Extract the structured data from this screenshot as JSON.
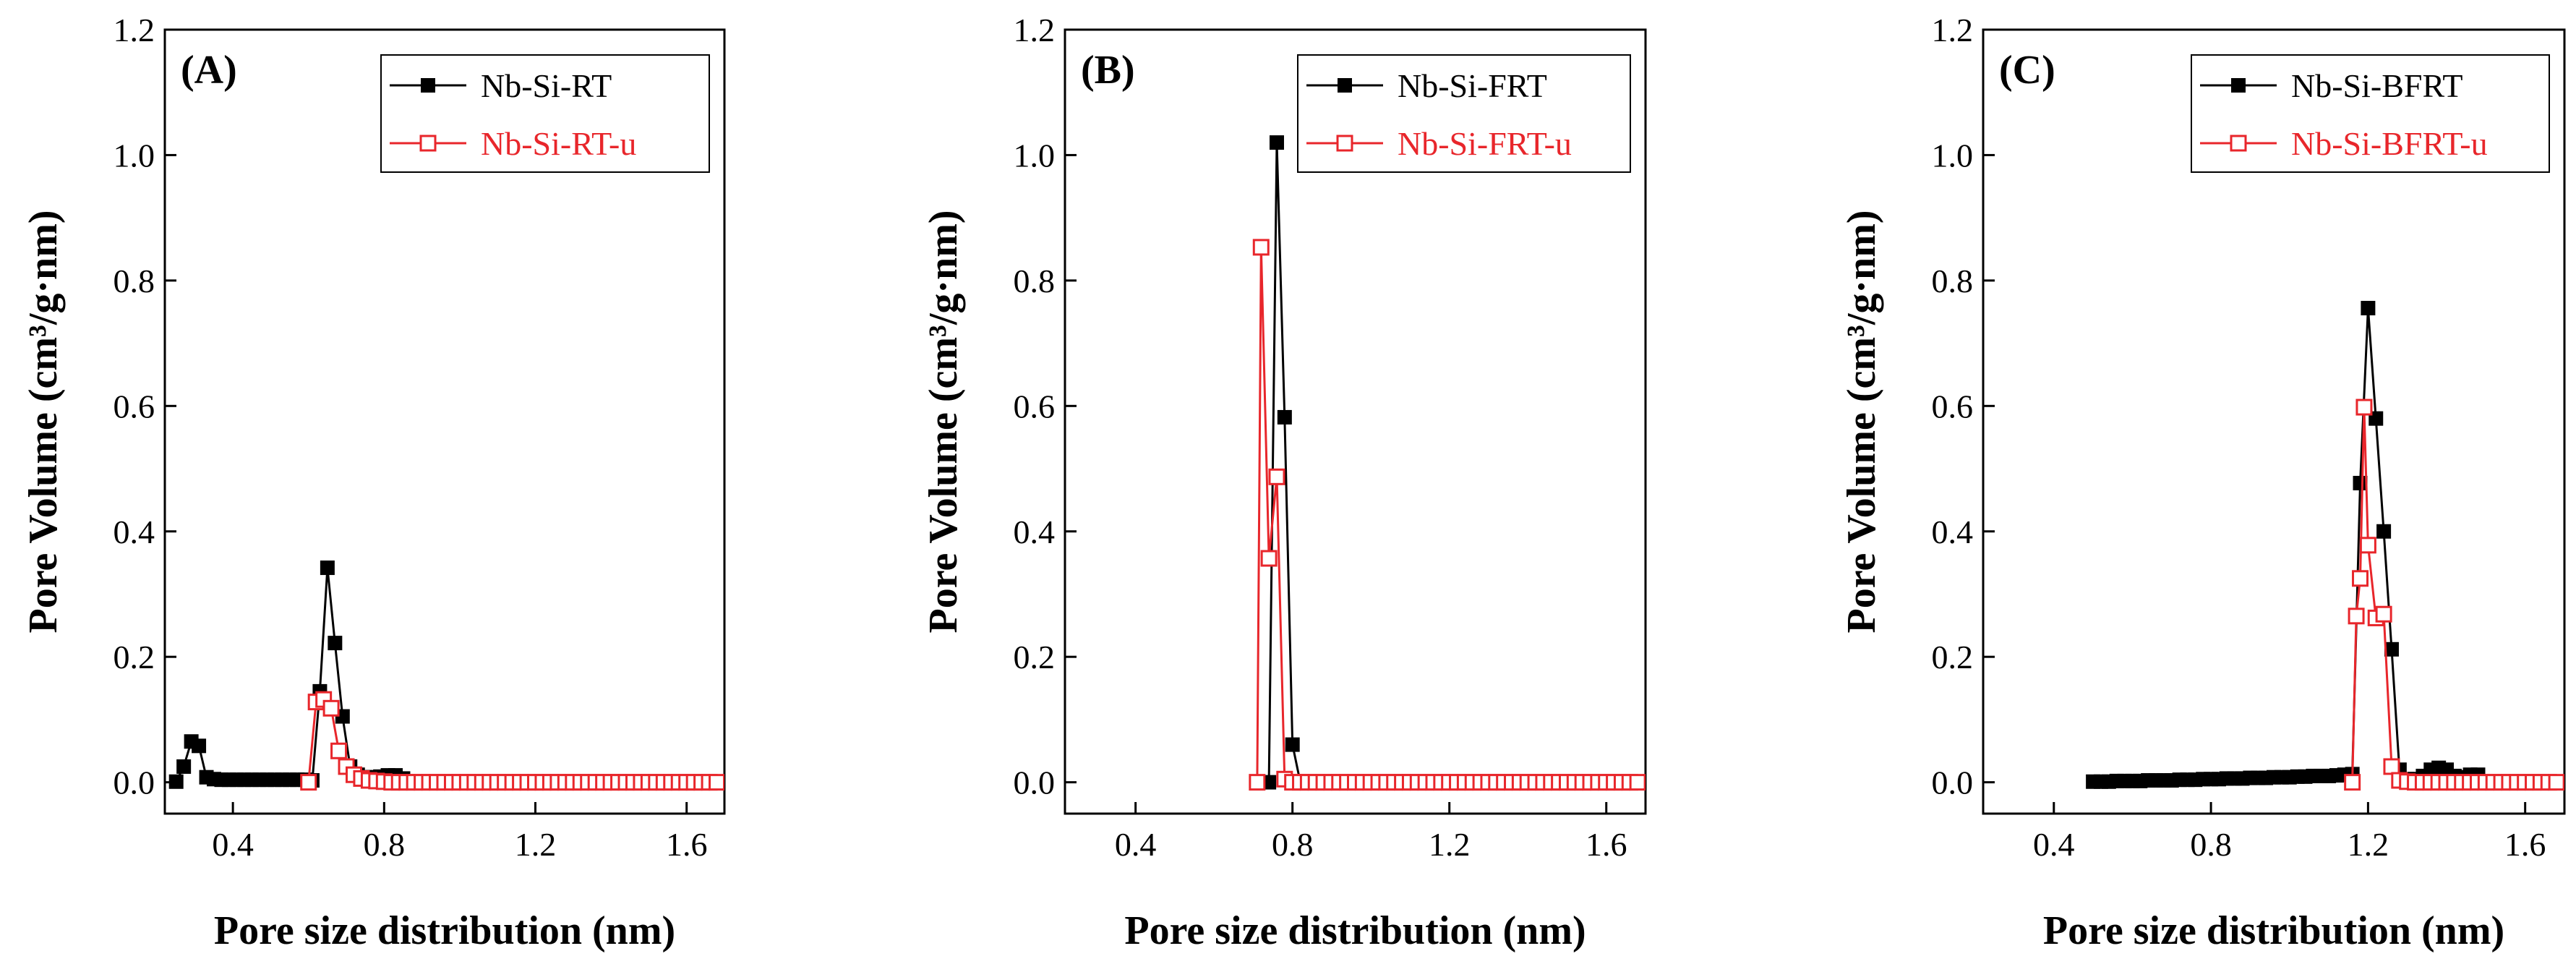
{
  "chart_data": [
    {
      "type": "line",
      "panel_label": "(A)",
      "xlabel": "Pore size distribution (nm)",
      "ylabel": "Pore Volume (cm³/g·nm)",
      "xlim": [
        0.22,
        1.7
      ],
      "ylim": [
        -0.05,
        1.2
      ],
      "xticks": [
        "0.4",
        "0.8",
        "1.2",
        "1.6"
      ],
      "yticks": [
        "0.0",
        "0.2",
        "0.4",
        "0.6",
        "0.8",
        "1.0",
        "1.2"
      ],
      "legend_position": "top-right",
      "series": [
        {
          "name": "Nb-Si-RT",
          "color": "#000000",
          "marker": "filled-square",
          "x": [
            0.25,
            0.27,
            0.29,
            0.31,
            0.33,
            0.35,
            0.37,
            0.39,
            0.41,
            0.43,
            0.45,
            0.47,
            0.49,
            0.51,
            0.53,
            0.55,
            0.57,
            0.59,
            0.61,
            0.63,
            0.65,
            0.67,
            0.69,
            0.71,
            0.73,
            0.75,
            0.77,
            0.79,
            0.81,
            0.83,
            0.85
          ],
          "y": [
            0.001,
            0.025,
            0.065,
            0.058,
            0.008,
            0.005,
            0.004,
            0.004,
            0.004,
            0.004,
            0.004,
            0.004,
            0.004,
            0.004,
            0.004,
            0.004,
            0.004,
            0.004,
            0.003,
            0.145,
            0.342,
            0.222,
            0.105,
            0.025,
            0.012,
            0.008,
            0.008,
            0.009,
            0.011,
            0.011,
            0.006
          ]
        },
        {
          "name": "Nb-Si-RT-u",
          "color": "#e8262b",
          "marker": "open-square",
          "x": [
            0.6,
            0.62,
            0.64,
            0.66,
            0.68,
            0.7,
            0.72,
            0.74,
            0.76,
            0.78,
            0.8,
            0.82,
            0.84,
            0.86,
            0.88,
            0.9,
            0.92,
            0.94,
            0.96,
            0.98,
            1.0,
            1.02,
            1.04,
            1.06,
            1.08,
            1.1,
            1.12,
            1.14,
            1.16,
            1.18,
            1.2,
            1.22,
            1.24,
            1.26,
            1.28,
            1.3,
            1.32,
            1.34,
            1.36,
            1.38,
            1.4,
            1.42,
            1.44,
            1.46,
            1.48,
            1.5,
            1.52,
            1.54,
            1.56,
            1.58,
            1.6,
            1.62,
            1.64,
            1.66,
            1.68
          ],
          "y": [
            0.0,
            0.128,
            0.132,
            0.118,
            0.05,
            0.025,
            0.012,
            0.006,
            0.003,
            0.002,
            0.001,
            0,
            0,
            0,
            0,
            0,
            0,
            0,
            0,
            0,
            0,
            0,
            0,
            0,
            0,
            0,
            0,
            0,
            0,
            0,
            0,
            0,
            0,
            0,
            0,
            0,
            0,
            0,
            0,
            0,
            0,
            0,
            0,
            0,
            0,
            0,
            0,
            0,
            0,
            0,
            0,
            0,
            0,
            0,
            0
          ]
        }
      ]
    },
    {
      "type": "line",
      "panel_label": "(B)",
      "xlabel": "Pore size distribution (nm)",
      "ylabel": "Pore Volume (cm³/g·nm)",
      "xlim": [
        0.22,
        1.7
      ],
      "ylim": [
        -0.05,
        1.2
      ],
      "xticks": [
        "0.4",
        "0.8",
        "1.2",
        "1.6"
      ],
      "yticks": [
        "0.0",
        "0.2",
        "0.4",
        "0.6",
        "0.8",
        "1.0",
        "1.2"
      ],
      "legend_position": "top-right",
      "series": [
        {
          "name": "Nb-Si-FRT",
          "color": "#000000",
          "marker": "filled-square",
          "x": [
            0.74,
            0.76,
            0.78,
            0.8,
            0.82
          ],
          "y": [
            0.0,
            1.02,
            0.582,
            0.06,
            0.0
          ]
        },
        {
          "name": "Nb-Si-FRT-u",
          "color": "#e8262b",
          "marker": "open-square",
          "x": [
            0.71,
            0.72,
            0.74,
            0.76,
            0.78,
            0.8,
            0.82,
            0.84,
            0.86,
            0.88,
            0.9,
            0.92,
            0.94,
            0.96,
            0.98,
            1.0,
            1.02,
            1.04,
            1.06,
            1.08,
            1.1,
            1.12,
            1.14,
            1.16,
            1.18,
            1.2,
            1.22,
            1.24,
            1.26,
            1.28,
            1.3,
            1.32,
            1.34,
            1.36,
            1.38,
            1.4,
            1.42,
            1.44,
            1.46,
            1.48,
            1.5,
            1.52,
            1.54,
            1.56,
            1.58,
            1.6,
            1.62,
            1.64,
            1.66,
            1.68
          ],
          "y": [
            0.0,
            0.853,
            0.357,
            0.487,
            0.005,
            0,
            0,
            0,
            0,
            0,
            0,
            0,
            0,
            0,
            0,
            0,
            0,
            0,
            0,
            0,
            0,
            0,
            0,
            0,
            0,
            0,
            0,
            0,
            0,
            0,
            0,
            0,
            0,
            0,
            0,
            0,
            0,
            0,
            0,
            0,
            0,
            0,
            0,
            0,
            0,
            0,
            0,
            0,
            0,
            0
          ]
        }
      ]
    },
    {
      "type": "line",
      "panel_label": "(C)",
      "xlabel": "Pore size distribution (nm)",
      "ylabel": "Pore Volume (cm³/g·nm)",
      "xlim": [
        0.22,
        1.7
      ],
      "ylim": [
        -0.05,
        1.2
      ],
      "xticks": [
        "0.4",
        "0.8",
        "1.2",
        "1.6"
      ],
      "yticks": [
        "0.0",
        "0.2",
        "0.4",
        "0.6",
        "0.8",
        "1.0",
        "1.2"
      ],
      "legend_position": "top-right",
      "series": [
        {
          "name": "Nb-Si-BFRT",
          "color": "#000000",
          "marker": "filled-square",
          "x": [
            0.5,
            0.52,
            0.54,
            0.56,
            0.58,
            0.6,
            0.62,
            0.64,
            0.66,
            0.68,
            0.7,
            0.72,
            0.74,
            0.76,
            0.78,
            0.8,
            0.82,
            0.84,
            0.86,
            0.88,
            0.9,
            0.92,
            0.94,
            0.96,
            0.98,
            1.0,
            1.02,
            1.04,
            1.06,
            1.08,
            1.1,
            1.12,
            1.14,
            1.16,
            1.18,
            1.2,
            1.22,
            1.24,
            1.26,
            1.28,
            1.3,
            1.32,
            1.34,
            1.36,
            1.38,
            1.4,
            1.42,
            1.44,
            1.46,
            1.48
          ],
          "y": [
            0.001,
            0.001,
            0.001,
            0.002,
            0.002,
            0.002,
            0.002,
            0.003,
            0.003,
            0.003,
            0.003,
            0.004,
            0.004,
            0.004,
            0.005,
            0.005,
            0.005,
            0.006,
            0.006,
            0.006,
            0.007,
            0.007,
            0.007,
            0.008,
            0.008,
            0.008,
            0.009,
            0.009,
            0.01,
            0.01,
            0.01,
            0.011,
            0.012,
            0.013,
            0.477,
            0.756,
            0.58,
            0.4,
            0.212,
            0.02,
            0.005,
            0.005,
            0.01,
            0.02,
            0.023,
            0.02,
            0.01,
            0.008,
            0.012,
            0.012
          ]
        },
        {
          "name": "Nb-Si-BFRT-u",
          "color": "#e8262b",
          "marker": "open-square",
          "x": [
            1.16,
            1.17,
            1.18,
            1.19,
            1.2,
            1.22,
            1.24,
            1.26,
            1.28,
            1.3,
            1.32,
            1.34,
            1.36,
            1.38,
            1.4,
            1.42,
            1.44,
            1.46,
            1.48,
            1.5,
            1.52,
            1.54,
            1.56,
            1.58,
            1.6,
            1.62,
            1.64,
            1.66,
            1.68
          ],
          "y": [
            0.0,
            0.265,
            0.325,
            0.598,
            0.378,
            0.262,
            0.268,
            0.025,
            0.003,
            0.001,
            0,
            0,
            0,
            0,
            0,
            0,
            0,
            0,
            0,
            0,
            0,
            0,
            0,
            0,
            0,
            0,
            0,
            0,
            0
          ]
        }
      ]
    }
  ]
}
